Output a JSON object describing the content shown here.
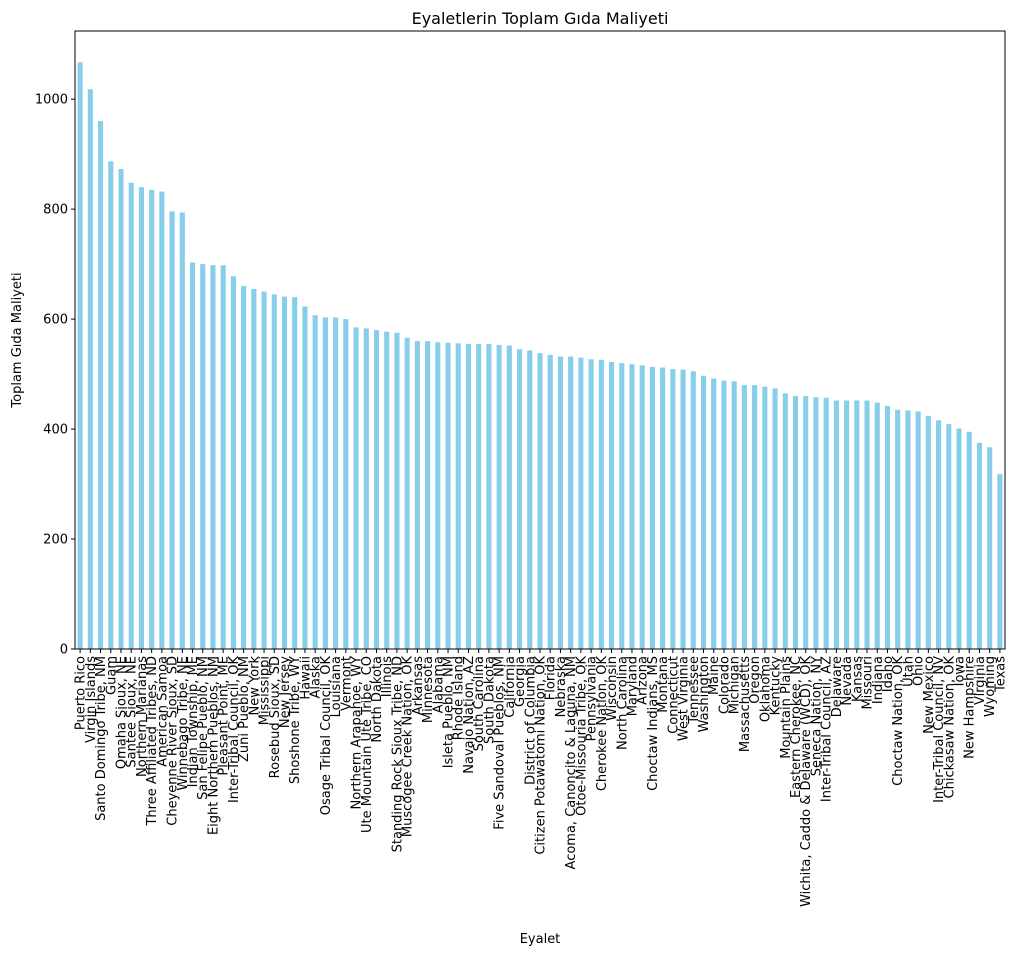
{
  "chart_data": {
    "type": "bar",
    "title": "Eyaletlerin Toplam Gıda Maliyeti",
    "x_label": "Eyalet",
    "y_label": "Toplam Gıda Maliyeti",
    "color": "#87ceeb",
    "categories": [
      "Puerto Rico",
      "Virgin Islands",
      "Santo Domingo Tribe, NM",
      "Guam",
      "Omaha Sioux, NE",
      "Santee Sioux, NE",
      "Northern Marianas",
      "Three Affiliated Tribes, ND",
      "American Samoa",
      "Cheyenne River Sioux, SD",
      "Winnebago Tribe, NE",
      "Indian Township, ME",
      "San Felipe Pueblo, NM",
      "Eight Northern Pueblos, NM",
      "Pleasant Point, ME",
      "Inter-Tribal Council, OK",
      "Zuni Pueblo, NM",
      "New York",
      "Mississippi",
      "Rosebud Sioux, SD",
      "New Jersey",
      "Shoshone Tribe, WY",
      "Hawaii",
      "Alaska",
      "Osage Tribal Council, OK",
      "Louisiana",
      "Vermont",
      "Northern Arapahoe, WY",
      "Ute Mountain Ute Tribe, CO",
      "North Dakota",
      "Illinois",
      "Standing Rock Sioux Tribe, ND",
      "Muscogee Creek Nation, OK",
      "Arkansas",
      "Minnesota",
      "Alabama",
      "Isleta Pueblo, NM",
      "Rhode Island",
      "Navajo Nation, AZ",
      "South Carolina",
      "South Dakota",
      "Five Sandoval Pueblos, NM",
      "California",
      "Georgia",
      "District of Columbia",
      "Citizen Potawatomi Nation, OK",
      "Florida",
      "Nebraska",
      "Acoma, Canoncito & Laguna, NM",
      "Otoe-Missouria Tribe, OK",
      "Pennsylvania",
      "Cherokee Nation, OK",
      "Wisconsin",
      "North Carolina",
      "Maryland",
      "Arizona",
      "Choctaw Indians, MS",
      "Montana",
      "Connecticut",
      "West Virginia",
      "Tennessee",
      "Washington",
      "Maine",
      "Colorado",
      "Michigan",
      "Massachusetts",
      "Oregon",
      "Oklahoma",
      "Kentucky",
      "Mountain Plains",
      "Eastern Cherokee, NC",
      "Wichita, Caddo & Delaware (WCD), OK",
      "Seneca Nation, NY",
      "Inter-Tribal Council, AZ",
      "Delaware",
      "Nevada",
      "Kansas",
      "Missouri",
      "Indiana",
      "Idaho",
      "Choctaw Nation, OK",
      "Utah",
      "Ohio",
      "New Mexico",
      "Inter-Tribal Council, NV",
      "Chickasaw Nation, OK",
      "Iowa",
      "New Hampshire",
      "Virginia",
      "Wyoming",
      "Texas"
    ],
    "values": [
      1067,
      1018,
      960,
      887,
      873,
      848,
      840,
      835,
      832,
      796,
      794,
      703,
      700,
      698,
      698,
      678,
      660,
      655,
      650,
      645,
      641,
      640,
      623,
      607,
      603,
      603,
      600,
      585,
      583,
      580,
      577,
      575,
      566,
      560,
      560,
      558,
      557,
      556,
      555,
      555,
      555,
      553,
      552,
      545,
      543,
      538,
      535,
      532,
      532,
      530,
      527,
      526,
      522,
      520,
      518,
      516,
      513,
      512,
      509,
      508,
      505,
      497,
      492,
      488,
      487,
      480,
      480,
      477,
      474,
      465,
      460,
      460,
      458,
      457,
      452,
      452,
      452,
      452,
      448,
      442,
      435,
      434,
      432,
      424,
      416,
      409,
      401,
      395,
      375,
      367,
      318
    ],
    "ylim": [
      0,
      1124
    ],
    "yticks": [
      0,
      200,
      400,
      600,
      800,
      1000
    ]
  }
}
